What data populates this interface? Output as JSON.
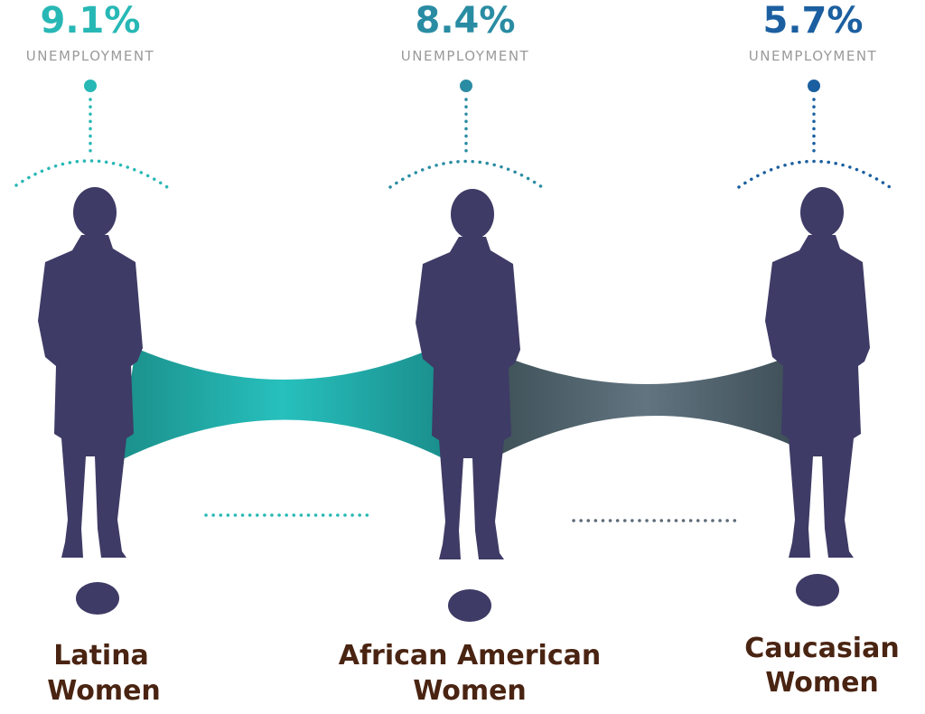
{
  "items": [
    {
      "rate": "9.1%",
      "metric": "UNEMPLOYMENT",
      "name": [
        "Latina",
        "Women"
      ]
    },
    {
      "rate": "8.4%",
      "metric": "UNEMPLOYMENT",
      "name": [
        "African American",
        "Women"
      ]
    },
    {
      "rate": "5.7%",
      "metric": "UNEMPLOYMENT",
      "name": [
        "Caucasian",
        "Women"
      ]
    }
  ]
}
